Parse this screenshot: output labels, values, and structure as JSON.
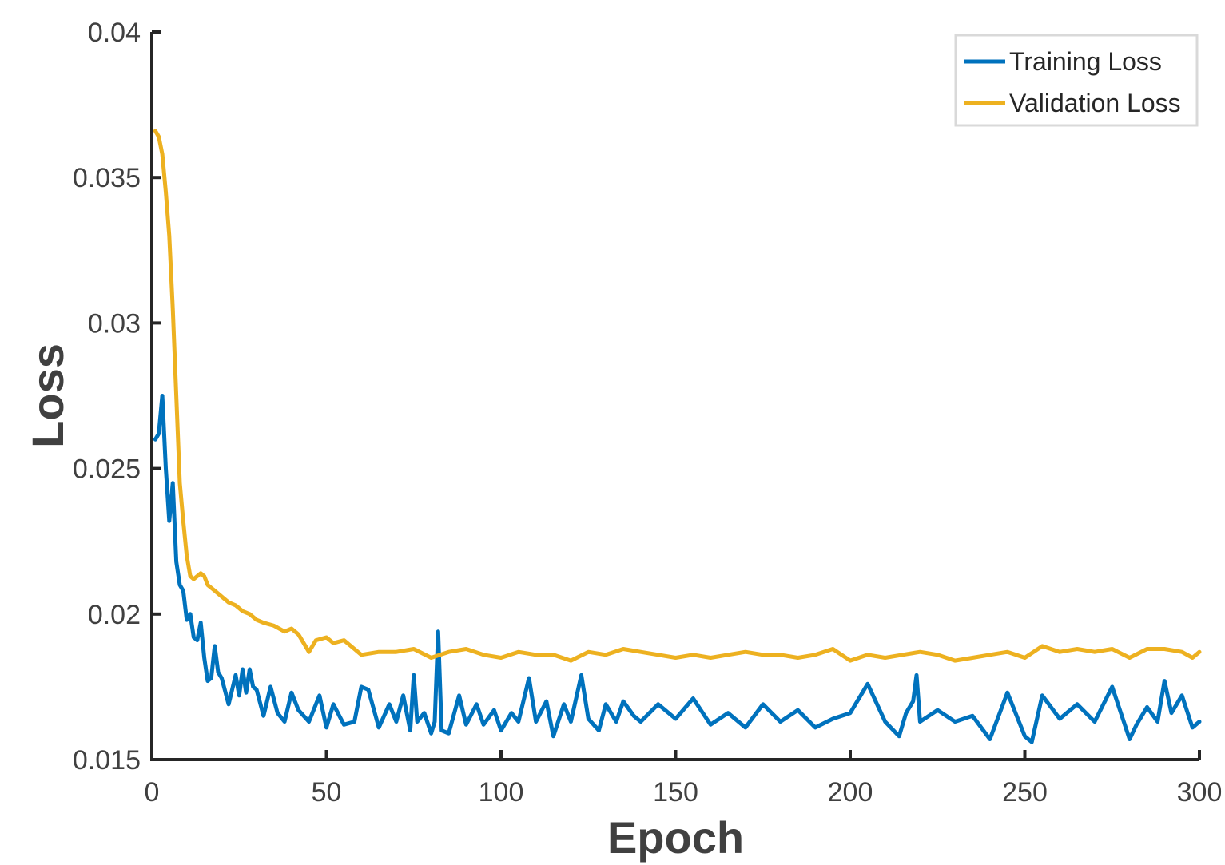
{
  "chart_data": {
    "type": "line",
    "xlabel": "Epoch",
    "ylabel": "Loss",
    "xlim": [
      0,
      300
    ],
    "ylim": [
      0.015,
      0.04
    ],
    "xticks": [
      0,
      50,
      100,
      150,
      200,
      250,
      300
    ],
    "xtick_labels": [
      "0",
      "50",
      "100",
      "150",
      "200",
      "250",
      "300"
    ],
    "yticks": [
      0.015,
      0.02,
      0.025,
      0.03,
      0.035,
      0.04
    ],
    "ytick_labels": [
      "0.015",
      "0.02",
      "0.025",
      "0.03",
      "0.035",
      "0.04"
    ],
    "grid": false,
    "legend_position": "top-right",
    "series": [
      {
        "name": "Training Loss",
        "color": "#0072BD",
        "x": [
          1,
          2,
          3,
          4,
          5,
          6,
          7,
          8,
          9,
          10,
          11,
          12,
          13,
          14,
          15,
          16,
          17,
          18,
          19,
          20,
          22,
          24,
          25,
          26,
          27,
          28,
          29,
          30,
          32,
          34,
          36,
          38,
          40,
          42,
          45,
          48,
          50,
          52,
          55,
          58,
          60,
          62,
          65,
          68,
          70,
          72,
          74,
          75,
          76,
          78,
          80,
          81,
          82,
          83,
          85,
          88,
          90,
          93,
          95,
          98,
          100,
          103,
          105,
          108,
          110,
          113,
          115,
          118,
          120,
          123,
          125,
          128,
          130,
          133,
          135,
          138,
          140,
          145,
          150,
          155,
          160,
          165,
          170,
          175,
          180,
          185,
          190,
          195,
          200,
          205,
          210,
          214,
          216,
          218,
          219,
          220,
          225,
          230,
          235,
          240,
          245,
          250,
          252,
          255,
          260,
          265,
          270,
          275,
          280,
          282,
          285,
          288,
          290,
          292,
          295,
          298,
          300
        ],
        "values": [
          0.026,
          0.0262,
          0.0275,
          0.025,
          0.0232,
          0.0245,
          0.0218,
          0.021,
          0.0208,
          0.0198,
          0.02,
          0.0192,
          0.0191,
          0.0197,
          0.0185,
          0.0177,
          0.0178,
          0.0189,
          0.018,
          0.0178,
          0.0169,
          0.0179,
          0.0172,
          0.0181,
          0.0173,
          0.0181,
          0.0175,
          0.0174,
          0.0165,
          0.0175,
          0.0166,
          0.0163,
          0.0173,
          0.0167,
          0.0163,
          0.0172,
          0.0161,
          0.0169,
          0.0162,
          0.0163,
          0.0175,
          0.0174,
          0.0161,
          0.0169,
          0.0163,
          0.0172,
          0.016,
          0.0179,
          0.0163,
          0.0166,
          0.0159,
          0.0163,
          0.0194,
          0.016,
          0.0159,
          0.0172,
          0.0162,
          0.0169,
          0.0162,
          0.0167,
          0.016,
          0.0166,
          0.0163,
          0.0178,
          0.0163,
          0.017,
          0.0158,
          0.0169,
          0.0163,
          0.0179,
          0.0164,
          0.016,
          0.0169,
          0.0163,
          0.017,
          0.0165,
          0.0163,
          0.0169,
          0.0164,
          0.0171,
          0.0162,
          0.0166,
          0.0161,
          0.0169,
          0.0163,
          0.0167,
          0.0161,
          0.0164,
          0.0166,
          0.0176,
          0.0163,
          0.0158,
          0.0166,
          0.017,
          0.0179,
          0.0163,
          0.0167,
          0.0163,
          0.0165,
          0.0157,
          0.0173,
          0.0158,
          0.0156,
          0.0172,
          0.0164,
          0.0169,
          0.0163,
          0.0175,
          0.0157,
          0.0162,
          0.0168,
          0.0163,
          0.0177,
          0.0166,
          0.0172,
          0.0161,
          0.0163
        ]
      },
      {
        "name": "Validation Loss",
        "color": "#EDB120",
        "x": [
          1,
          2,
          3,
          4,
          5,
          6,
          7,
          8,
          9,
          10,
          11,
          12,
          13,
          14,
          15,
          16,
          17,
          18,
          20,
          22,
          24,
          26,
          28,
          30,
          32,
          35,
          38,
          40,
          42,
          44,
          45,
          47,
          50,
          52,
          55,
          58,
          60,
          65,
          70,
          75,
          80,
          85,
          90,
          95,
          100,
          105,
          110,
          115,
          120,
          125,
          130,
          135,
          140,
          145,
          150,
          155,
          160,
          165,
          170,
          175,
          180,
          185,
          190,
          195,
          200,
          205,
          210,
          215,
          220,
          225,
          230,
          235,
          240,
          245,
          250,
          255,
          260,
          265,
          270,
          275,
          280,
          285,
          290,
          295,
          298,
          300
        ],
        "values": [
          0.0366,
          0.0364,
          0.0358,
          0.0345,
          0.033,
          0.0305,
          0.0275,
          0.0245,
          0.0232,
          0.022,
          0.0213,
          0.0212,
          0.0213,
          0.0214,
          0.0213,
          0.021,
          0.0209,
          0.0208,
          0.0206,
          0.0204,
          0.0203,
          0.0201,
          0.02,
          0.0198,
          0.0197,
          0.0196,
          0.0194,
          0.0195,
          0.0193,
          0.0189,
          0.0187,
          0.0191,
          0.0192,
          0.019,
          0.0191,
          0.0188,
          0.0186,
          0.0187,
          0.0187,
          0.0188,
          0.0185,
          0.0187,
          0.0188,
          0.0186,
          0.0185,
          0.0187,
          0.0186,
          0.0186,
          0.0184,
          0.0187,
          0.0186,
          0.0188,
          0.0187,
          0.0186,
          0.0185,
          0.0186,
          0.0185,
          0.0186,
          0.0187,
          0.0186,
          0.0186,
          0.0185,
          0.0186,
          0.0188,
          0.0184,
          0.0186,
          0.0185,
          0.0186,
          0.0187,
          0.0186,
          0.0184,
          0.0185,
          0.0186,
          0.0187,
          0.0185,
          0.0189,
          0.0187,
          0.0188,
          0.0187,
          0.0188,
          0.0185,
          0.0188,
          0.0188,
          0.0187,
          0.0185,
          0.0187
        ]
      }
    ]
  }
}
